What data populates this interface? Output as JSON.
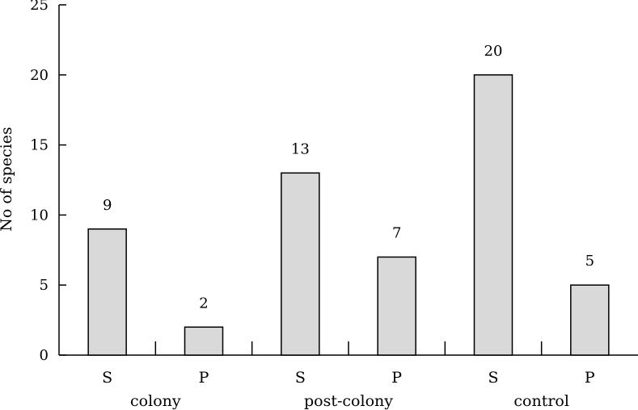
{
  "chart_data": {
    "type": "bar",
    "title": "",
    "xlabel": "",
    "ylabel": "No of species",
    "ylim": [
      0,
      25
    ],
    "yticks": [
      0,
      5,
      10,
      15,
      20,
      25
    ],
    "grid": false,
    "legend": "none",
    "bar_color": "#d9d9d9",
    "groups": [
      "colony",
      "post-colony",
      "control"
    ],
    "categories": [
      "S",
      "P",
      "S",
      "P",
      "S",
      "P"
    ],
    "values": [
      9,
      2,
      13,
      7,
      20,
      5
    ],
    "data_labels": [
      "9",
      "2",
      "13",
      "7",
      "20",
      "5"
    ]
  }
}
